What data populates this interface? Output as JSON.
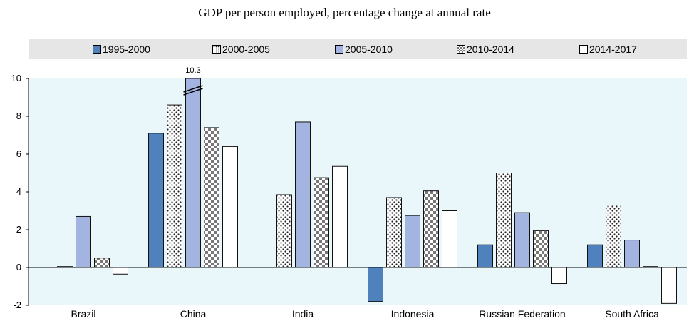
{
  "chart_data": {
    "type": "bar",
    "title": "GDP per person employed, percentage change at annual rate",
    "xlabel": "",
    "ylabel": "",
    "ylim": [
      -2,
      10
    ],
    "yticks": [
      -2,
      0,
      2,
      4,
      6,
      8,
      10
    ],
    "grid": false,
    "legend_position": "top",
    "categories": [
      "Brazil",
      "China",
      "India",
      "Indonesia",
      "Russian Federation",
      "South Africa"
    ],
    "series": [
      {
        "name": "1995-2000",
        "values": [
          null,
          7.1,
          null,
          -1.8,
          1.2,
          1.2
        ],
        "color": "#4f81bd",
        "pattern": "solid"
      },
      {
        "name": "2000-2005",
        "values": [
          0.05,
          8.6,
          3.85,
          3.7,
          5.0,
          3.3
        ],
        "color": "#ffffff",
        "pattern": "dots"
      },
      {
        "name": "2005-2010",
        "values": [
          2.7,
          10.3,
          7.7,
          2.75,
          2.9,
          1.45
        ],
        "color": "#a3b4e0",
        "pattern": "solid"
      },
      {
        "name": "2010-2014",
        "values": [
          0.5,
          7.4,
          4.75,
          4.05,
          1.95,
          0.05
        ],
        "color": "#888888",
        "pattern": "checker"
      },
      {
        "name": "2014-2017",
        "values": [
          -0.35,
          6.4,
          5.35,
          3.0,
          -0.85,
          -1.9
        ],
        "color": "#ffffff",
        "pattern": "solid"
      }
    ],
    "data_labels": [
      {
        "category": "China",
        "series": "2005-2010",
        "text": "10.3"
      }
    ]
  }
}
